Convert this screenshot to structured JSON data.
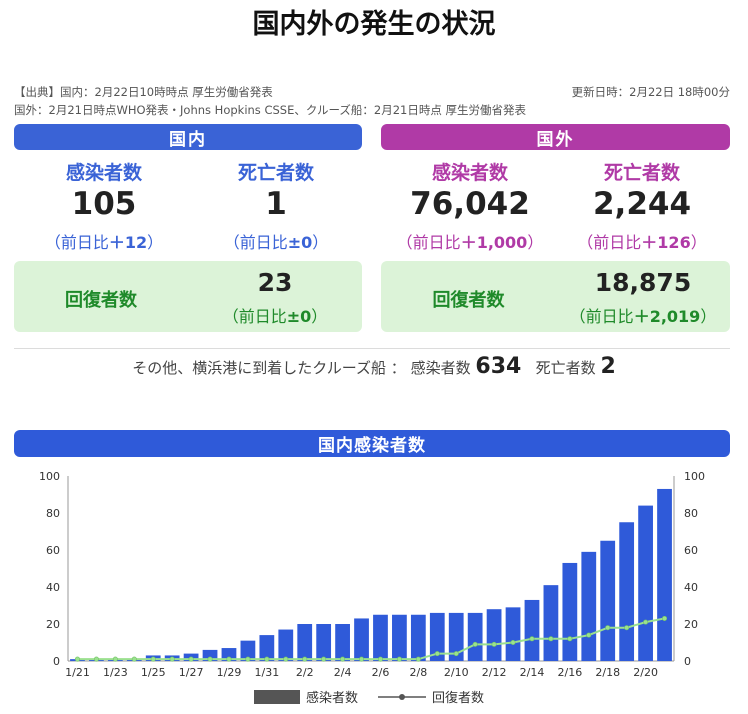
{
  "title": "国内外の発生の状況",
  "source": {
    "line1": "【出典】国内：2月22日10時時点 厚生労働省発表",
    "updated": "更新日時：2月22日 18時00分",
    "line2": "国外：2月21日時点WHO発表・Johns Hopkins CSSE、クルーズ船：2月21日時点 厚生労働省発表"
  },
  "domestic": {
    "header": "国内",
    "infected_label": "感染者数",
    "infected": "105",
    "infected_diff_prefix": "（前日比",
    "infected_diff": "＋12",
    "infected_diff_suffix": "）",
    "deaths_label": "死亡者数",
    "deaths": "1",
    "deaths_diff_prefix": "（前日比",
    "deaths_diff": "±0",
    "deaths_diff_suffix": "）",
    "recovered_label": "回復者数",
    "recovered": "23",
    "recovered_diff_prefix": "（前日比",
    "recovered_diff": "±0",
    "recovered_diff_suffix": "）"
  },
  "overseas": {
    "header": "国外",
    "infected_label": "感染者数",
    "infected": "76,042",
    "infected_diff_prefix": "（前日比",
    "infected_diff": "＋1,000",
    "infected_diff_suffix": "）",
    "deaths_label": "死亡者数",
    "deaths": "2,244",
    "deaths_diff_prefix": "（前日比",
    "deaths_diff": "＋126",
    "deaths_diff_suffix": "）",
    "recovered_label": "回復者数",
    "recovered": "18,875",
    "recovered_diff_prefix": "（前日比",
    "recovered_diff": "＋2,019",
    "recovered_diff_suffix": "）"
  },
  "cruise": {
    "text": "その他、横浜港に到着したクルーズ船 ：",
    "infected_label": "感染者数",
    "infected": "634",
    "deaths_label": "死亡者数",
    "deaths": "2"
  },
  "colors": {
    "domestic": "#3a63d6",
    "overseas": "#b03aa6",
    "recovered": "#1f8a2a",
    "recovered_bg": "#dcf3d8",
    "bar": "#2f5ad9",
    "line": "#9be08f"
  },
  "chart_data": {
    "type": "bar",
    "title": "国内感染者数",
    "x": [
      "1/21",
      "1/22",
      "1/23",
      "1/24",
      "1/25",
      "1/26",
      "1/27",
      "1/28",
      "1/29",
      "1/30",
      "1/31",
      "2/1",
      "2/2",
      "2/3",
      "2/4",
      "2/5",
      "2/6",
      "2/7",
      "2/8",
      "2/9",
      "2/10",
      "2/11",
      "2/12",
      "2/13",
      "2/14",
      "2/15",
      "2/16",
      "2/17",
      "2/18",
      "2/19",
      "2/20",
      "2/21"
    ],
    "x_tick_labels": [
      "1/21",
      "1/23",
      "1/25",
      "1/27",
      "1/29",
      "1/31",
      "2/2",
      "2/4",
      "2/6",
      "2/8",
      "2/10",
      "2/12",
      "2/14",
      "2/16",
      "2/18",
      "2/20"
    ],
    "series": [
      {
        "name": "感染者数",
        "kind": "bar",
        "values": [
          1,
          1,
          1,
          1,
          3,
          3,
          4,
          6,
          7,
          11,
          14,
          17,
          20,
          20,
          20,
          23,
          25,
          25,
          25,
          26,
          26,
          26,
          28,
          29,
          33,
          41,
          53,
          59,
          65,
          75,
          84,
          93
        ]
      },
      {
        "name": "回復者数",
        "kind": "line",
        "values": [
          1,
          1,
          1,
          1,
          1,
          1,
          1,
          1,
          1,
          1,
          1,
          1,
          1,
          1,
          1,
          1,
          1,
          1,
          1,
          4,
          4,
          9,
          9,
          10,
          12,
          12,
          12,
          14,
          18,
          18,
          21,
          23
        ]
      }
    ],
    "ylim": [
      0,
      100
    ],
    "yticks": [
      0,
      20,
      40,
      60,
      80,
      100
    ],
    "legend_position": "bottom",
    "grid": false
  }
}
